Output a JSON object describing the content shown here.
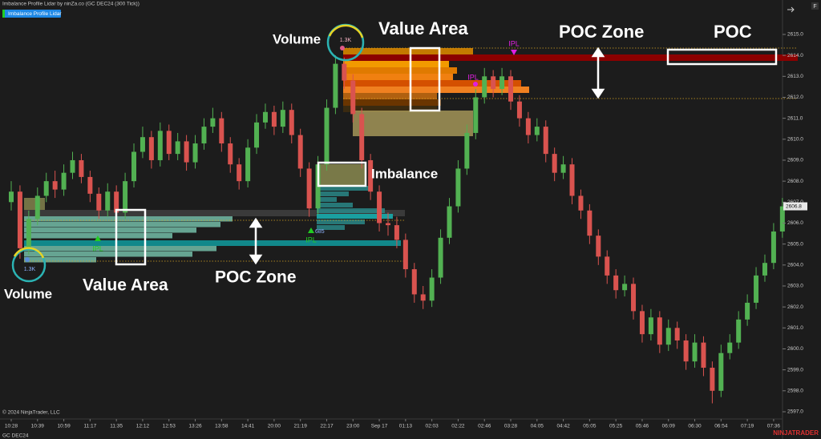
{
  "chart_data": {
    "type": "candlestick",
    "title": "Imbalance Profile Lidar by ninZa.co (GC DEC24 (300 Tick))",
    "indicator_button": "Imbalance Profile Lidar",
    "instrument": "GC DEC24",
    "copyright": "© 2024 NinjaTrader, LLC",
    "brand": "NINJATRADER",
    "menu_icon": "F",
    "up_color": "#52b152",
    "down_color": "#d9534f",
    "categories": [
      "10:28",
      null,
      null,
      "10:39",
      null,
      null,
      "10:59",
      null,
      null,
      "11:17",
      null,
      null,
      "11:35",
      null,
      null,
      "12:12",
      null,
      null,
      "12:53",
      null,
      null,
      "13:26",
      null,
      null,
      "13:58",
      null,
      null,
      "14:41",
      null,
      null,
      "20:00",
      null,
      null,
      "21:19",
      null,
      null,
      "22:17",
      null,
      null,
      "23:00",
      null,
      null,
      "Sep 17",
      null,
      null,
      "01:13",
      null,
      null,
      "02:03",
      null,
      null,
      "02:22",
      null,
      null,
      "02:46",
      null,
      null,
      "03:28",
      null,
      null,
      "04:05",
      null,
      null,
      "04:42",
      null,
      null,
      "05:05",
      null,
      null,
      "05:25",
      null,
      null,
      "05:46",
      null,
      null,
      "06:09",
      null,
      null,
      "06:30",
      null,
      null,
      "06:54",
      null,
      null,
      "07:19",
      null,
      null,
      "07:36",
      null
    ],
    "open": [
      2607.0,
      2607.5,
      2604.8,
      2606.2,
      2607.3,
      2608.0,
      2607.6,
      2608.4,
      2609.0,
      2608.2,
      2607.4,
      2606.6,
      2607.5,
      2606.5,
      2608.0,
      2609.4,
      2610.1,
      2609.0,
      2610.4,
      2609.3,
      2609.9,
      2608.9,
      2609.8,
      2610.6,
      2611.0,
      2609.8,
      2608.8,
      2608.0,
      2609.6,
      2610.8,
      2611.3,
      2610.6,
      2611.4,
      2610.2,
      2608.6,
      2606.7,
      2608.8,
      2611.5,
      2613.6,
      2612.8,
      2611.2,
      2609.0,
      2607.5,
      2606.0,
      2605.9,
      2605.2,
      2603.8,
      2602.6,
      2602.3,
      2603.4,
      2605.3,
      2606.8,
      2608.6,
      2610.3,
      2612.0,
      2613.0,
      2612.4,
      2613.0,
      2611.8,
      2611.0,
      2610.2,
      2610.6,
      2609.3,
      2608.4,
      2608.8,
      2607.3,
      2606.6,
      2605.4,
      2604.4,
      2603.5,
      2602.8,
      2603.1,
      2601.8,
      2600.7,
      2601.5,
      2600.2,
      2601.0,
      2600.4,
      2599.4,
      2600.3,
      2599.1,
      2598.0,
      2599.8,
      2600.3,
      2601.4,
      2602.2,
      2603.5,
      2604.1,
      2605.6
    ],
    "high": [
      2608.0,
      2607.8,
      2606.6,
      2607.7,
      2608.4,
      2608.5,
      2608.8,
      2609.4,
      2609.3,
      2608.5,
      2607.7,
      2607.9,
      2607.8,
      2608.4,
      2609.8,
      2610.6,
      2610.4,
      2610.8,
      2610.7,
      2610.3,
      2610.2,
      2610.2,
      2611.0,
      2611.5,
      2611.3,
      2610.1,
      2609.1,
      2610.0,
      2611.2,
      2611.7,
      2611.6,
      2611.8,
      2611.7,
      2610.5,
      2608.9,
      2609.2,
      2611.9,
      2614.0,
      2613.9,
      2613.1,
      2611.5,
      2609.3,
      2607.8,
      2606.5,
      2606.3,
      2605.5,
      2604.1,
      2603.0,
      2603.8,
      2605.7,
      2607.2,
      2609.0,
      2610.7,
      2612.4,
      2613.4,
      2613.3,
      2613.4,
      2613.3,
      2612.1,
      2611.3,
      2611.0,
      2610.9,
      2609.6,
      2609.2,
      2609.1,
      2607.6,
      2606.9,
      2605.7,
      2604.7,
      2603.8,
      2603.5,
      2603.4,
      2602.1,
      2601.9,
      2601.8,
      2601.4,
      2601.3,
      2600.7,
      2600.7,
      2600.6,
      2599.4,
      2600.2,
      2600.7,
      2601.8,
      2602.6,
      2603.9,
      2604.5,
      2606.0,
      2607.2
    ],
    "low": [
      2606.6,
      2604.3,
      2604.5,
      2605.9,
      2607.0,
      2607.2,
      2607.3,
      2608.1,
      2607.9,
      2607.0,
      2606.2,
      2606.3,
      2606.1,
      2606.2,
      2607.7,
      2609.1,
      2608.6,
      2608.7,
      2609.0,
      2609.0,
      2608.5,
      2608.6,
      2609.5,
      2610.3,
      2609.4,
      2608.4,
      2607.6,
      2607.7,
      2609.3,
      2610.5,
      2610.2,
      2610.3,
      2609.8,
      2608.2,
      2606.3,
      2606.4,
      2608.5,
      2611.2,
      2612.4,
      2610.8,
      2608.6,
      2607.1,
      2605.6,
      2605.4,
      2604.8,
      2603.4,
      2602.2,
      2601.9,
      2602.0,
      2603.1,
      2605.0,
      2606.5,
      2608.3,
      2610.0,
      2611.7,
      2612.0,
      2612.1,
      2611.4,
      2610.6,
      2609.8,
      2609.9,
      2608.9,
      2608.0,
      2608.1,
      2606.9,
      2606.2,
      2605.0,
      2604.0,
      2603.1,
      2602.4,
      2602.5,
      2601.4,
      2600.3,
      2600.4,
      2599.8,
      2599.9,
      2600.0,
      2599.0,
      2599.1,
      2598.7,
      2597.4,
      2597.7,
      2599.5,
      2600.0,
      2601.1,
      2601.9,
      2603.2,
      2603.8,
      2605.3
    ],
    "close": [
      2607.5,
      2604.8,
      2606.2,
      2607.3,
      2608.0,
      2607.6,
      2608.4,
      2609.0,
      2608.2,
      2607.4,
      2606.6,
      2607.5,
      2606.5,
      2608.0,
      2609.4,
      2610.1,
      2609.0,
      2610.4,
      2609.3,
      2609.9,
      2608.9,
      2609.8,
      2610.6,
      2611.0,
      2609.8,
      2608.8,
      2608.0,
      2609.6,
      2610.8,
      2611.3,
      2610.6,
      2611.4,
      2610.2,
      2608.6,
      2606.7,
      2608.8,
      2611.5,
      2613.6,
      2612.8,
      2611.2,
      2609.0,
      2607.5,
      2606.0,
      2605.9,
      2605.2,
      2603.8,
      2602.6,
      2602.3,
      2603.4,
      2605.3,
      2606.8,
      2608.6,
      2610.3,
      2612.0,
      2613.0,
      2612.4,
      2613.0,
      2611.8,
      2611.0,
      2610.2,
      2610.6,
      2609.3,
      2608.4,
      2608.8,
      2607.3,
      2606.6,
      2605.4,
      2604.4,
      2603.5,
      2602.8,
      2603.1,
      2601.8,
      2600.7,
      2601.5,
      2600.2,
      2601.0,
      2600.4,
      2599.4,
      2600.3,
      2599.1,
      2598.0,
      2599.8,
      2600.3,
      2601.4,
      2602.2,
      2603.5,
      2604.1,
      2605.6,
      2606.8
    ],
    "ylim": [
      2596.77,
      2616.26
    ],
    "yticks": [
      {
        "value": 2597,
        "label": "2597.0"
      },
      {
        "value": 2598,
        "label": "2598.0"
      },
      {
        "value": 2599,
        "label": "2599.0"
      },
      {
        "value": 2600,
        "label": "2600.0"
      },
      {
        "value": 2601,
        "label": "2601.0"
      },
      {
        "value": 2602,
        "label": "2602.0"
      },
      {
        "value": 2603,
        "label": "2603.0"
      },
      {
        "value": 2604,
        "label": "2604.0"
      },
      {
        "value": 2605,
        "label": "2605.0"
      },
      {
        "value": 2606,
        "label": "2606.0"
      },
      {
        "value": 2607,
        "label": "2607.0"
      },
      {
        "value": 2608,
        "label": "2608.0"
      },
      {
        "value": 2609,
        "label": "2609.0"
      },
      {
        "value": 2610,
        "label": "2610.0"
      },
      {
        "value": 2611,
        "label": "2611.0"
      },
      {
        "value": 2612,
        "label": "2612.0"
      },
      {
        "value": 2613,
        "label": "2613.0"
      },
      {
        "value": 2614,
        "label": "2614.0"
      },
      {
        "value": 2615,
        "label": "2615.0"
      }
    ],
    "annotations": [
      "Volume",
      "1.3K",
      "Value Area",
      "POC Zone",
      "POC",
      "Imbalance",
      "Value Area",
      "POC Zone",
      "Volume",
      "1.3K",
      "IPL",
      "IPL",
      "685",
      "IPL",
      "IPL"
    ]
  }
}
